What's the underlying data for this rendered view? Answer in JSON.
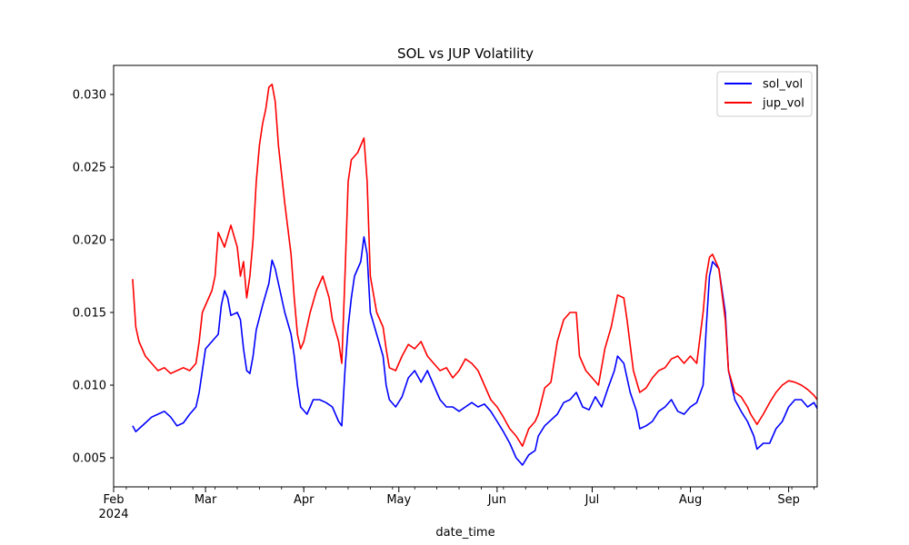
{
  "chart_data": {
    "type": "line",
    "title": "SOL vs JUP Volatility",
    "xlabel": "date_time",
    "ylabel": "",
    "xlim": [
      "2024-02-01",
      "2024-09-10"
    ],
    "ylim": [
      0.003,
      0.032
    ],
    "y_ticks": [
      {
        "value": 0.005,
        "label": "0.005"
      },
      {
        "value": 0.01,
        "label": "0.010"
      },
      {
        "value": 0.015,
        "label": "0.015"
      },
      {
        "value": 0.02,
        "label": "0.020"
      },
      {
        "value": 0.025,
        "label": "0.025"
      },
      {
        "value": 0.03,
        "label": "0.030"
      }
    ],
    "x_ticks": [
      {
        "date": "2024-02-01",
        "label": "Feb",
        "sublabel": "2024"
      },
      {
        "date": "2024-03-01",
        "label": "Mar"
      },
      {
        "date": "2024-04-01",
        "label": "Apr"
      },
      {
        "date": "2024-05-01",
        "label": "May"
      },
      {
        "date": "2024-06-01",
        "label": "Jun"
      },
      {
        "date": "2024-07-01",
        "label": "Jul"
      },
      {
        "date": "2024-08-01",
        "label": "Aug"
      },
      {
        "date": "2024-09-01",
        "label": "Sep"
      }
    ],
    "grid": false,
    "legend": "top-right",
    "series": [
      {
        "name": "sol_vol",
        "color": "#0000ff",
        "points": [
          [
            "2024-02-07",
            0.0072
          ],
          [
            "2024-02-08",
            0.0068
          ],
          [
            "2024-02-09",
            0.007
          ],
          [
            "2024-02-11",
            0.0074
          ],
          [
            "2024-02-13",
            0.0078
          ],
          [
            "2024-02-15",
            0.008
          ],
          [
            "2024-02-17",
            0.0082
          ],
          [
            "2024-02-19",
            0.0078
          ],
          [
            "2024-02-21",
            0.0072
          ],
          [
            "2024-02-23",
            0.0074
          ],
          [
            "2024-02-25",
            0.008
          ],
          [
            "2024-02-27",
            0.0085
          ],
          [
            "2024-02-28",
            0.0095
          ],
          [
            "2024-02-29",
            0.011
          ],
          [
            "2024-03-01",
            0.0125
          ],
          [
            "2024-03-03",
            0.013
          ],
          [
            "2024-03-05",
            0.0135
          ],
          [
            "2024-03-06",
            0.0155
          ],
          [
            "2024-03-07",
            0.0165
          ],
          [
            "2024-03-08",
            0.016
          ],
          [
            "2024-03-09",
            0.0148
          ],
          [
            "2024-03-11",
            0.015
          ],
          [
            "2024-03-12",
            0.0145
          ],
          [
            "2024-03-13",
            0.0125
          ],
          [
            "2024-03-14",
            0.011
          ],
          [
            "2024-03-15",
            0.0108
          ],
          [
            "2024-03-16",
            0.012
          ],
          [
            "2024-03-17",
            0.0138
          ],
          [
            "2024-03-19",
            0.0155
          ],
          [
            "2024-03-21",
            0.017
          ],
          [
            "2024-03-22",
            0.0186
          ],
          [
            "2024-03-23",
            0.018
          ],
          [
            "2024-03-25",
            0.016
          ],
          [
            "2024-03-26",
            0.015
          ],
          [
            "2024-03-28",
            0.0135
          ],
          [
            "2024-03-29",
            0.012
          ],
          [
            "2024-03-30",
            0.01
          ],
          [
            "2024-03-31",
            0.0085
          ],
          [
            "2024-04-02",
            0.008
          ],
          [
            "2024-04-03",
            0.0085
          ],
          [
            "2024-04-04",
            0.009
          ],
          [
            "2024-04-06",
            0.009
          ],
          [
            "2024-04-08",
            0.0088
          ],
          [
            "2024-04-10",
            0.0085
          ],
          [
            "2024-04-11",
            0.008
          ],
          [
            "2024-04-12",
            0.0075
          ],
          [
            "2024-04-13",
            0.0072
          ],
          [
            "2024-04-14",
            0.011
          ],
          [
            "2024-04-15",
            0.014
          ],
          [
            "2024-04-16",
            0.016
          ],
          [
            "2024-04-17",
            0.0175
          ],
          [
            "2024-04-19",
            0.0185
          ],
          [
            "2024-04-20",
            0.0202
          ],
          [
            "2024-04-21",
            0.019
          ],
          [
            "2024-04-22",
            0.015
          ],
          [
            "2024-04-24",
            0.0135
          ],
          [
            "2024-04-26",
            0.012
          ],
          [
            "2024-04-27",
            0.01
          ],
          [
            "2024-04-28",
            0.009
          ],
          [
            "2024-04-30",
            0.0085
          ],
          [
            "2024-05-02",
            0.0092
          ],
          [
            "2024-05-04",
            0.0105
          ],
          [
            "2024-05-06",
            0.011
          ],
          [
            "2024-05-08",
            0.0102
          ],
          [
            "2024-05-10",
            0.011
          ],
          [
            "2024-05-12",
            0.01
          ],
          [
            "2024-05-14",
            0.009
          ],
          [
            "2024-05-16",
            0.0085
          ],
          [
            "2024-05-18",
            0.0085
          ],
          [
            "2024-05-20",
            0.0082
          ],
          [
            "2024-05-22",
            0.0085
          ],
          [
            "2024-05-24",
            0.0088
          ],
          [
            "2024-05-26",
            0.0085
          ],
          [
            "2024-05-28",
            0.0087
          ],
          [
            "2024-05-30",
            0.0082
          ],
          [
            "2024-06-01",
            0.0075
          ],
          [
            "2024-06-03",
            0.0068
          ],
          [
            "2024-06-05",
            0.006
          ],
          [
            "2024-06-07",
            0.005
          ],
          [
            "2024-06-09",
            0.0045
          ],
          [
            "2024-06-11",
            0.0052
          ],
          [
            "2024-06-13",
            0.0055
          ],
          [
            "2024-06-14",
            0.0065
          ],
          [
            "2024-06-16",
            0.0072
          ],
          [
            "2024-06-18",
            0.0076
          ],
          [
            "2024-06-20",
            0.008
          ],
          [
            "2024-06-22",
            0.0088
          ],
          [
            "2024-06-24",
            0.009
          ],
          [
            "2024-06-26",
            0.0095
          ],
          [
            "2024-06-28",
            0.0085
          ],
          [
            "2024-06-30",
            0.0083
          ],
          [
            "2024-07-02",
            0.0092
          ],
          [
            "2024-07-04",
            0.0085
          ],
          [
            "2024-07-06",
            0.0098
          ],
          [
            "2024-07-08",
            0.011
          ],
          [
            "2024-07-09",
            0.012
          ],
          [
            "2024-07-11",
            0.0115
          ],
          [
            "2024-07-13",
            0.0095
          ],
          [
            "2024-07-15",
            0.0082
          ],
          [
            "2024-07-16",
            0.007
          ],
          [
            "2024-07-18",
            0.0072
          ],
          [
            "2024-07-20",
            0.0075
          ],
          [
            "2024-07-22",
            0.0082
          ],
          [
            "2024-07-24",
            0.0085
          ],
          [
            "2024-07-26",
            0.009
          ],
          [
            "2024-07-28",
            0.0082
          ],
          [
            "2024-07-30",
            0.008
          ],
          [
            "2024-08-01",
            0.0085
          ],
          [
            "2024-08-03",
            0.0088
          ],
          [
            "2024-08-05",
            0.01
          ],
          [
            "2024-08-06",
            0.014
          ],
          [
            "2024-08-07",
            0.0175
          ],
          [
            "2024-08-08",
            0.0185
          ],
          [
            "2024-08-10",
            0.018
          ],
          [
            "2024-08-12",
            0.015
          ],
          [
            "2024-08-13",
            0.011
          ],
          [
            "2024-08-15",
            0.009
          ],
          [
            "2024-08-17",
            0.0082
          ],
          [
            "2024-08-19",
            0.0075
          ],
          [
            "2024-08-21",
            0.0065
          ],
          [
            "2024-08-22",
            0.0056
          ],
          [
            "2024-08-24",
            0.006
          ],
          [
            "2024-08-26",
            0.006
          ],
          [
            "2024-08-28",
            0.007
          ],
          [
            "2024-08-30",
            0.0075
          ],
          [
            "2024-09-01",
            0.0085
          ],
          [
            "2024-09-03",
            0.009
          ],
          [
            "2024-09-05",
            0.009
          ],
          [
            "2024-09-07",
            0.0085
          ],
          [
            "2024-09-09",
            0.0088
          ],
          [
            "2024-09-10",
            0.0084
          ]
        ]
      },
      {
        "name": "jup_vol",
        "color": "#ff0000",
        "points": [
          [
            "2024-02-07",
            0.0173
          ],
          [
            "2024-02-08",
            0.014
          ],
          [
            "2024-02-09",
            0.013
          ],
          [
            "2024-02-10",
            0.0125
          ],
          [
            "2024-02-11",
            0.012
          ],
          [
            "2024-02-13",
            0.0115
          ],
          [
            "2024-02-15",
            0.011
          ],
          [
            "2024-02-17",
            0.0112
          ],
          [
            "2024-02-19",
            0.0108
          ],
          [
            "2024-02-21",
            0.011
          ],
          [
            "2024-02-23",
            0.0112
          ],
          [
            "2024-02-25",
            0.011
          ],
          [
            "2024-02-27",
            0.0115
          ],
          [
            "2024-02-28",
            0.013
          ],
          [
            "2024-02-29",
            0.015
          ],
          [
            "2024-03-01",
            0.0155
          ],
          [
            "2024-03-03",
            0.0165
          ],
          [
            "2024-03-04",
            0.0175
          ],
          [
            "2024-03-05",
            0.0205
          ],
          [
            "2024-03-07",
            0.0195
          ],
          [
            "2024-03-09",
            0.021
          ],
          [
            "2024-03-11",
            0.0195
          ],
          [
            "2024-03-12",
            0.0175
          ],
          [
            "2024-03-13",
            0.0185
          ],
          [
            "2024-03-14",
            0.016
          ],
          [
            "2024-03-15",
            0.0175
          ],
          [
            "2024-03-16",
            0.02
          ],
          [
            "2024-03-17",
            0.024
          ],
          [
            "2024-03-18",
            0.0265
          ],
          [
            "2024-03-19",
            0.028
          ],
          [
            "2024-03-20",
            0.029
          ],
          [
            "2024-03-21",
            0.0305
          ],
          [
            "2024-03-22",
            0.0307
          ],
          [
            "2024-03-23",
            0.0295
          ],
          [
            "2024-03-24",
            0.0265
          ],
          [
            "2024-03-26",
            0.0225
          ],
          [
            "2024-03-28",
            0.019
          ],
          [
            "2024-03-29",
            0.016
          ],
          [
            "2024-03-30",
            0.0135
          ],
          [
            "2024-03-31",
            0.0125
          ],
          [
            "2024-04-01",
            0.013
          ],
          [
            "2024-04-03",
            0.015
          ],
          [
            "2024-04-05",
            0.0165
          ],
          [
            "2024-04-07",
            0.0175
          ],
          [
            "2024-04-09",
            0.016
          ],
          [
            "2024-04-10",
            0.0145
          ],
          [
            "2024-04-12",
            0.013
          ],
          [
            "2024-04-13",
            0.0115
          ],
          [
            "2024-04-14",
            0.0175
          ],
          [
            "2024-04-15",
            0.024
          ],
          [
            "2024-04-16",
            0.0255
          ],
          [
            "2024-04-18",
            0.026
          ],
          [
            "2024-04-19",
            0.0265
          ],
          [
            "2024-04-20",
            0.027
          ],
          [
            "2024-04-21",
            0.024
          ],
          [
            "2024-04-22",
            0.0175
          ],
          [
            "2024-04-24",
            0.015
          ],
          [
            "2024-04-26",
            0.014
          ],
          [
            "2024-04-27",
            0.0125
          ],
          [
            "2024-04-28",
            0.0112
          ],
          [
            "2024-04-30",
            0.011
          ],
          [
            "2024-05-02",
            0.012
          ],
          [
            "2024-05-04",
            0.0128
          ],
          [
            "2024-05-06",
            0.0125
          ],
          [
            "2024-05-08",
            0.013
          ],
          [
            "2024-05-10",
            0.012
          ],
          [
            "2024-05-12",
            0.0115
          ],
          [
            "2024-05-14",
            0.011
          ],
          [
            "2024-05-16",
            0.0112
          ],
          [
            "2024-05-18",
            0.0105
          ],
          [
            "2024-05-20",
            0.011
          ],
          [
            "2024-05-22",
            0.0118
          ],
          [
            "2024-05-24",
            0.0115
          ],
          [
            "2024-05-26",
            0.011
          ],
          [
            "2024-05-28",
            0.01
          ],
          [
            "2024-05-30",
            0.009
          ],
          [
            "2024-06-01",
            0.0085
          ],
          [
            "2024-06-03",
            0.0078
          ],
          [
            "2024-06-05",
            0.007
          ],
          [
            "2024-06-07",
            0.0065
          ],
          [
            "2024-06-09",
            0.0058
          ],
          [
            "2024-06-11",
            0.007
          ],
          [
            "2024-06-13",
            0.0075
          ],
          [
            "2024-06-14",
            0.008
          ],
          [
            "2024-06-16",
            0.0098
          ],
          [
            "2024-06-18",
            0.0102
          ],
          [
            "2024-06-20",
            0.013
          ],
          [
            "2024-06-22",
            0.0145
          ],
          [
            "2024-06-24",
            0.015
          ],
          [
            "2024-06-26",
            0.015
          ],
          [
            "2024-06-27",
            0.012
          ],
          [
            "2024-06-29",
            0.011
          ],
          [
            "2024-07-01",
            0.0105
          ],
          [
            "2024-07-03",
            0.01
          ],
          [
            "2024-07-05",
            0.0125
          ],
          [
            "2024-07-07",
            0.014
          ],
          [
            "2024-07-09",
            0.0162
          ],
          [
            "2024-07-11",
            0.016
          ],
          [
            "2024-07-12",
            0.0145
          ],
          [
            "2024-07-14",
            0.011
          ],
          [
            "2024-07-16",
            0.0095
          ],
          [
            "2024-07-18",
            0.0098
          ],
          [
            "2024-07-20",
            0.0105
          ],
          [
            "2024-07-22",
            0.011
          ],
          [
            "2024-07-24",
            0.0112
          ],
          [
            "2024-07-26",
            0.0118
          ],
          [
            "2024-07-28",
            0.012
          ],
          [
            "2024-07-30",
            0.0115
          ],
          [
            "2024-08-01",
            0.012
          ],
          [
            "2024-08-03",
            0.0115
          ],
          [
            "2024-08-05",
            0.015
          ],
          [
            "2024-08-06",
            0.0175
          ],
          [
            "2024-08-07",
            0.0188
          ],
          [
            "2024-08-08",
            0.019
          ],
          [
            "2024-08-10",
            0.018
          ],
          [
            "2024-08-12",
            0.0145
          ],
          [
            "2024-08-13",
            0.011
          ],
          [
            "2024-08-15",
            0.0095
          ],
          [
            "2024-08-17",
            0.0092
          ],
          [
            "2024-08-19",
            0.0085
          ],
          [
            "2024-08-20",
            0.008
          ],
          [
            "2024-08-22",
            0.0073
          ],
          [
            "2024-08-24",
            0.008
          ],
          [
            "2024-08-26",
            0.0088
          ],
          [
            "2024-08-28",
            0.0095
          ],
          [
            "2024-08-30",
            0.01
          ],
          [
            "2024-09-01",
            0.0103
          ],
          [
            "2024-09-03",
            0.0102
          ],
          [
            "2024-09-05",
            0.01
          ],
          [
            "2024-09-07",
            0.0097
          ],
          [
            "2024-09-09",
            0.0093
          ],
          [
            "2024-09-10",
            0.009
          ]
        ]
      }
    ]
  }
}
